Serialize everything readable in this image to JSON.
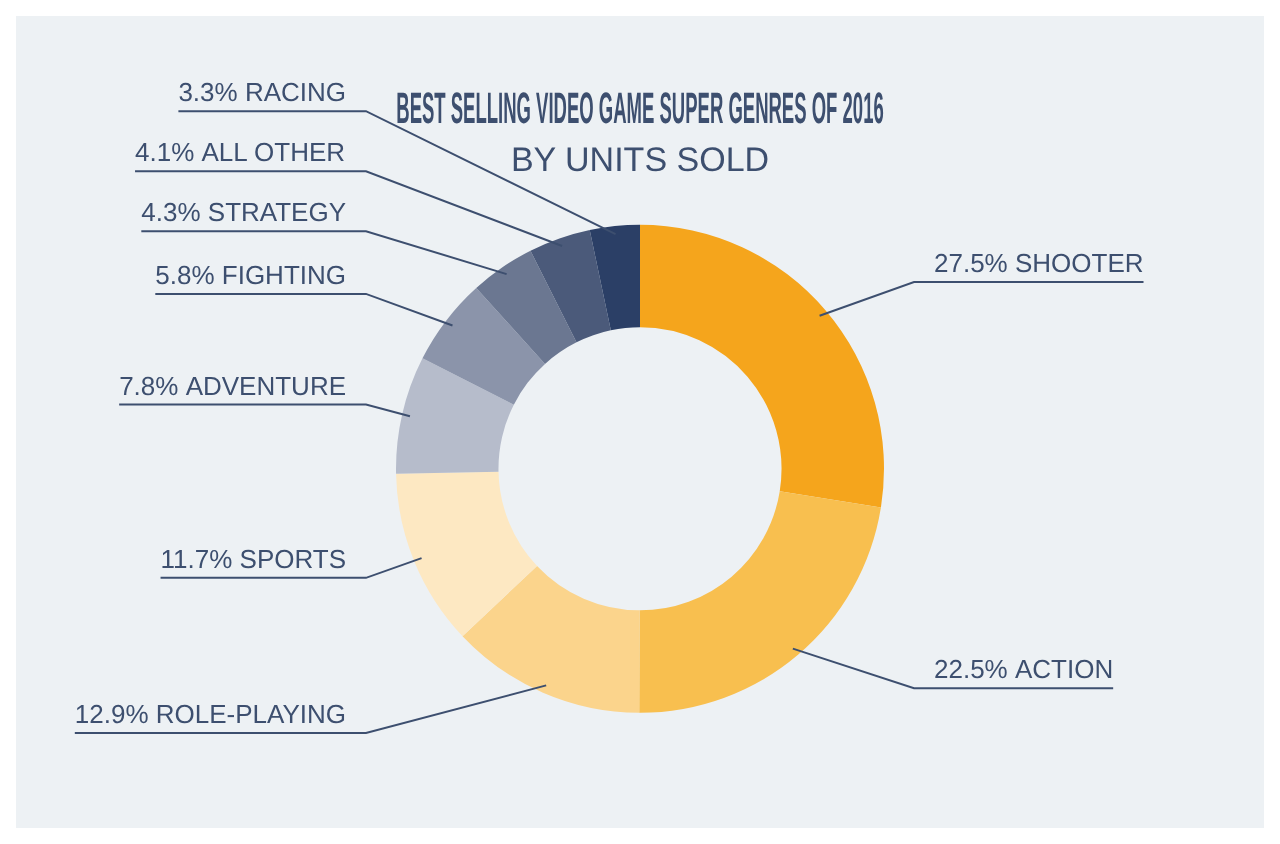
{
  "chart_data": {
    "type": "donut",
    "title": "BEST SELLING VIDEO GAME SUPER GENRES OF 2016",
    "subtitle": "BY UNITS SOLD",
    "categories": [
      "SHOOTER",
      "ACTION",
      "ROLE-PLAYING",
      "SPORTS",
      "ADVENTURE",
      "FIGHTING",
      "STRATEGY",
      "ALL OTHER",
      "RACING"
    ],
    "values": [
      27.5,
      22.5,
      12.9,
      11.7,
      7.8,
      5.8,
      4.3,
      4.1,
      3.3
    ],
    "colors": [
      "#f5a51c",
      "#f8bf4f",
      "#fbd48c",
      "#fde8c2",
      "#b6bccb",
      "#8b94aa",
      "#6b7791",
      "#4b5a7a",
      "#2b3f66"
    ],
    "value_labels": [
      "27.5%",
      "22.5%",
      "12.9%",
      "11.7%",
      "7.8%",
      "5.8%",
      "4.3%",
      "4.1%",
      "3.3%"
    ],
    "legend": false
  }
}
